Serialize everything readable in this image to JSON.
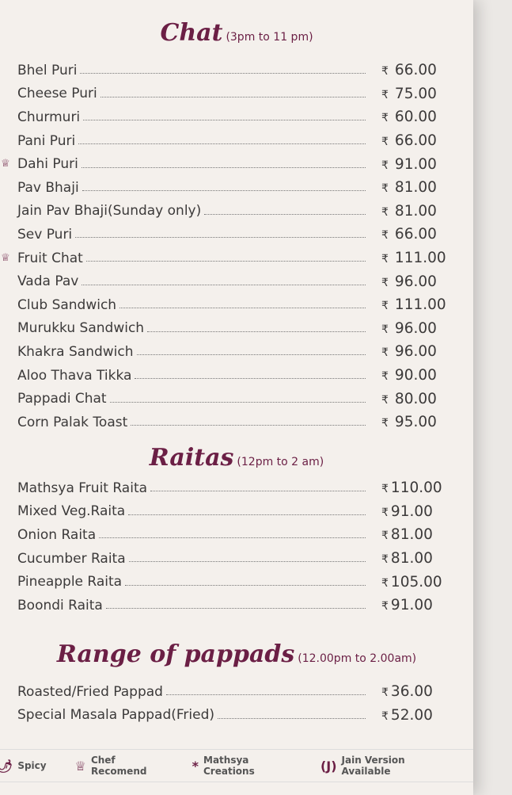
{
  "sections": [
    {
      "title": "Chat",
      "hours": "(3pm to 11 pm)",
      "currency": "₹",
      "items": [
        {
          "name": "Bhel Puri",
          "price": "66.00",
          "chef": false
        },
        {
          "name": "Cheese Puri",
          "price": "75.00",
          "chef": false
        },
        {
          "name": "Churmuri",
          "price": "60.00",
          "chef": false
        },
        {
          "name": "Pani Puri",
          "price": "66.00",
          "chef": false
        },
        {
          "name": "Dahi Puri",
          "price": "91.00",
          "chef": true
        },
        {
          "name": "Pav Bhaji",
          "price": "81.00",
          "chef": false
        },
        {
          "name": "Jain Pav Bhaji(Sunday only)",
          "price": "81.00",
          "chef": false
        },
        {
          "name": "Sev Puri",
          "price": "66.00",
          "chef": false
        },
        {
          "name": "Fruit Chat",
          "price": "111.00",
          "chef": true
        },
        {
          "name": "Vada Pav",
          "price": "96.00",
          "chef": false
        },
        {
          "name": "Club Sandwich",
          "price": "111.00",
          "chef": false
        },
        {
          "name": "Murukku Sandwich",
          "price": "96.00",
          "chef": false
        },
        {
          "name": "Khakra Sandwich",
          "price": "96.00",
          "chef": false
        },
        {
          "name": "Aloo Thava Tikka",
          "price": "90.00",
          "chef": false
        },
        {
          "name": "Pappadi Chat",
          "price": "80.00",
          "chef": false
        },
        {
          "name": "Corn Palak Toast",
          "price": "95.00",
          "chef": false
        }
      ]
    },
    {
      "title": "Raitas",
      "hours": "(12pm to 2 am)",
      "currency": "₹",
      "items": [
        {
          "name": "Mathsya Fruit Raita",
          "price": "110.00"
        },
        {
          "name": "Mixed Veg.Raita",
          "price": "91.00"
        },
        {
          "name": "Onion Raita",
          "price": "81.00"
        },
        {
          "name": "Cucumber Raita",
          "price": "81.00"
        },
        {
          "name": "Pineapple Raita",
          "price": "105.00"
        },
        {
          "name": "Boondi Raita",
          "price": "91.00"
        }
      ]
    },
    {
      "title": "Range of pappads",
      "hours": "(12.00pm to 2.00am)",
      "currency": "₹",
      "items": [
        {
          "name": "Roasted/Fried Pappad",
          "price": "36.00"
        },
        {
          "name": "Special Masala Pappad(Fried)",
          "price": "52.00"
        }
      ]
    }
  ],
  "legend": [
    {
      "icon": "chili-icon",
      "symbol": "🌶",
      "label": "Spicy"
    },
    {
      "icon": "chef-hat-icon",
      "symbol": "♕",
      "label": "Chef Recomend"
    },
    {
      "icon": "asterisk-icon",
      "symbol": "*",
      "label": "Mathsya Creations"
    },
    {
      "icon": "jain-icon",
      "symbol": "(J)",
      "label": "Jain Version Available"
    }
  ],
  "colors": {
    "accent": "#6b1f45",
    "text": "#3c3a3a",
    "paper": "#f4f0ec"
  }
}
